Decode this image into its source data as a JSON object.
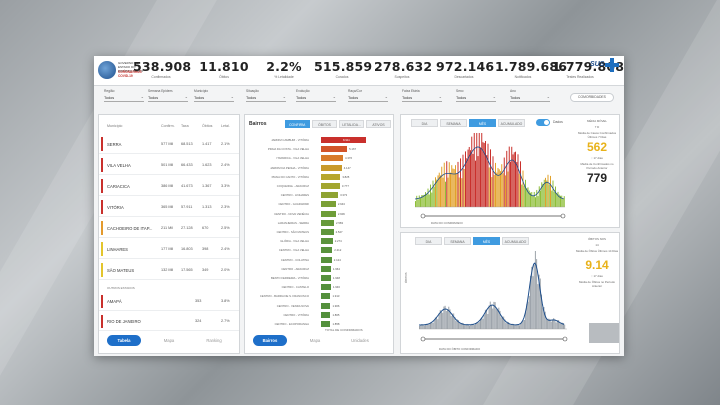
{
  "header": {
    "logo_line1": "GOVERNO DO ESTADO DO ESPÍRITO SANTO",
    "logo_line2": "CORONAVÍRUS COVID-19",
    "kpis": [
      {
        "value": "538.908",
        "label": "Confirmados"
      },
      {
        "value": "11.810",
        "label": "Óbitos"
      },
      {
        "value": "2.2%",
        "label": "% Letalidade"
      },
      {
        "value": "515.859",
        "label": "Curados"
      },
      {
        "value": "278.632",
        "label": "Suspeitos"
      },
      {
        "value": "972.146",
        "label": "Descartados"
      },
      {
        "value": "1.789.686",
        "label": "Notificados"
      },
      {
        "value": "1.779.808",
        "label": "Testes Realizados"
      }
    ],
    "sus_label": "SUS"
  },
  "filters_left": [
    {
      "label": "Região",
      "value": "Todos"
    },
    {
      "label": "Semana Epidem.",
      "value": "Todos"
    },
    {
      "label": "Município",
      "value": "Todos"
    }
  ],
  "filters_mid": [
    {
      "label": "Situação",
      "value": "Todos"
    },
    {
      "label": "Evolução",
      "value": "Todos"
    },
    {
      "label": "Raça/Cor",
      "value": "Todos"
    }
  ],
  "filters_right": [
    {
      "label": "Faixa Etária",
      "value": "Todos"
    },
    {
      "label": "Sexo",
      "value": "Todos"
    },
    {
      "label": "Ano",
      "value": "Todos"
    }
  ],
  "filters_button": "COMORBIDADES",
  "table": {
    "headers": [
      "Município",
      "Confirm.",
      "Taxa",
      "Óbitos",
      "Letal."
    ],
    "rows": [
      {
        "name": "SERRA",
        "c1": "577 Mil",
        "c2": "68.513",
        "c3": "1.417",
        "c4": "2.1%",
        "color": "#c9302c"
      },
      {
        "name": "VILA VELHA",
        "c1": "501 Mil",
        "c2": "66.433",
        "c3": "1.623",
        "c4": "2.4%",
        "color": "#c9302c"
      },
      {
        "name": "CARIACICA",
        "c1": "386 Mil",
        "c2": "41.673",
        "c3": "1.367",
        "c4": "3.3%",
        "color": "#c9302c"
      },
      {
        "name": "VITÓRIA",
        "c1": "365 Mil",
        "c2": "57.911",
        "c3": "1.313",
        "c4": "2.3%",
        "color": "#c9302c"
      },
      {
        "name": "CACHOEIRO DE ITAP...",
        "c1": "211 Mil",
        "c2": "27.128",
        "c3": "670",
        "c4": "2.5%",
        "color": "#e39a2d"
      },
      {
        "name": "LINHARES",
        "c1": "177 Mil",
        "c2": "16.803",
        "c3": "398",
        "c4": "2.4%",
        "color": "#e3c52d"
      },
      {
        "name": "SÃO MATEUS",
        "c1": "132 Mil",
        "c2": "17.565",
        "c3": "349",
        "c4": "2.0%",
        "color": "#e3c52d"
      }
    ],
    "section_label": "OUTROS ESTADOS",
    "rows2": [
      {
        "name": "AMAPÁ",
        "c3": "353",
        "c4": "3.8%",
        "color": "#c9302c"
      },
      {
        "name": "RIO DE JANEIRO",
        "c3": "324",
        "c4": "2.7%",
        "color": "#c9302c"
      }
    ],
    "tabs": [
      "Tabela",
      "Mapa",
      "Ranking"
    ]
  },
  "bairros": {
    "title": "Bairros",
    "seg": [
      "CONFIRM.",
      "ÓBITOS",
      "LETALIDA...",
      "ATIVOS"
    ],
    "items": [
      {
        "label": "JARDIM CAMBURI - VITÓRIA",
        "value": "8.911",
        "ratio": 1.0,
        "color": "#c9302c"
      },
      {
        "label": "PRAIA DA COSTA - VILA VELHA",
        "value": "5.167",
        "ratio": 0.58,
        "color": "#d2542a"
      },
      {
        "label": "ITAPARICA - VILA VELHA",
        "value": "4.376",
        "ratio": 0.49,
        "color": "#d87a2a"
      },
      {
        "label": "JARDIM DA PENHA - VITÓRIA",
        "value": "4.147",
        "ratio": 0.46,
        "color": "#c99a2b"
      },
      {
        "label": "PRAIA DO CANTO - VITÓRIA",
        "value": "3.825",
        "ratio": 0.43,
        "color": "#b7a62c"
      },
      {
        "label": "COQUEIRAL - ARACRUZ",
        "value": "3.777",
        "ratio": 0.42,
        "color": "#a3a62f"
      },
      {
        "label": "CENTRO - LINHARES",
        "value": "3.373",
        "ratio": 0.38,
        "color": "#8fa332"
      },
      {
        "label": "CENTRO - GUARAPARI",
        "value": "2.943",
        "ratio": 0.33,
        "color": "#7ba036"
      },
      {
        "label": "CENTRO - NOVA VENÉCIA",
        "value": "2.906",
        "ratio": 0.33,
        "color": "#6e9d38"
      },
      {
        "label": "LARANJEIRAS - SERRA",
        "value": "2.583",
        "ratio": 0.29,
        "color": "#66993a"
      },
      {
        "label": "CENTRO - SÃO MATEUS",
        "value": "2.527",
        "ratio": 0.28,
        "color": "#5f963b"
      },
      {
        "label": "GLÓRIA - VILA VELHA",
        "value": "2.274",
        "ratio": 0.26,
        "color": "#5b943c"
      },
      {
        "label": "CENTRO - VILA VELHA",
        "value": "2.212",
        "ratio": 0.25,
        "color": "#58933c"
      },
      {
        "label": "CENTRO - COLATINA",
        "value": "2.124",
        "ratio": 0.24,
        "color": "#57923c"
      },
      {
        "label": "CENTRO - ARACRUZ",
        "value": "1.964",
        "ratio": 0.22,
        "color": "#56923c"
      },
      {
        "label": "BENTO FERREIRA - VITÓRIA",
        "value": "1.948",
        "ratio": 0.22,
        "color": "#55913c"
      },
      {
        "label": "CENTRO - CASTELO",
        "value": "1.946",
        "ratio": 0.22,
        "color": "#55913c"
      },
      {
        "label": "CENTRO - BARRA DE S. FRANCISCO",
        "value": "1.913",
        "ratio": 0.21,
        "color": "#54903c"
      },
      {
        "label": "CENTRO - VENDA NOVA",
        "value": "1.906",
        "ratio": 0.21,
        "color": "#54903c"
      },
      {
        "label": "CENTRO - VITÓRIA",
        "value": "1.865",
        "ratio": 0.21,
        "color": "#53903c"
      },
      {
        "label": "CENTRO - ECOPORANGA",
        "value": "1.858",
        "ratio": 0.21,
        "color": "#53903c"
      }
    ],
    "axis_label": "TOTAL DE CONFIRMADOS",
    "tabs": [
      "Bairros",
      "Mapa",
      "Unidades"
    ]
  },
  "chart_top": {
    "seg": [
      "DIA",
      "SEMANA",
      "MÊS",
      "ACUMULADO"
    ],
    "toggle_label": "Dados",
    "side": [
      {
        "kind": "small",
        "text": "MÉDIA MÓVEL"
      },
      {
        "kind": "small",
        "text": "7 D"
      },
      {
        "kind": "small",
        "text": "Média de Casos Confirmados Últimos 7 Dias"
      },
      {
        "kind": "big",
        "text": "562",
        "color": "#e8b21a"
      },
      {
        "kind": "small",
        "text": "↑ 17 dias"
      },
      {
        "kind": "small",
        "text": "Média de Confirmados no Período Anterior"
      },
      {
        "kind": "big",
        "text": "779",
        "color": "#222"
      }
    ],
    "axis_caption": "DATA DO CONFIRMADO"
  },
  "chart_bottom": {
    "seg": [
      "DIA",
      "SEMANA",
      "MÊS",
      "ACUMULADO"
    ],
    "side": [
      {
        "kind": "small",
        "text": "ÓBITOS NOS"
      },
      {
        "kind": "small",
        "text": "14"
      },
      {
        "kind": "small",
        "text": "Média de Óbitos Últimos 14 Dias"
      },
      {
        "kind": "big",
        "text": "9.14",
        "color": "#e8b21a"
      },
      {
        "kind": "small",
        "text": "↑ 17 dias"
      },
      {
        "kind": "small",
        "text": "Média de Óbitos no Período Anterior"
      },
      {
        "kind": "big",
        "text": "14.71",
        "color": "#fff"
      }
    ],
    "axis_caption": "DATA DO ÓBITO CONFIRMADO",
    "y_label": "ÓBITOS"
  }
}
